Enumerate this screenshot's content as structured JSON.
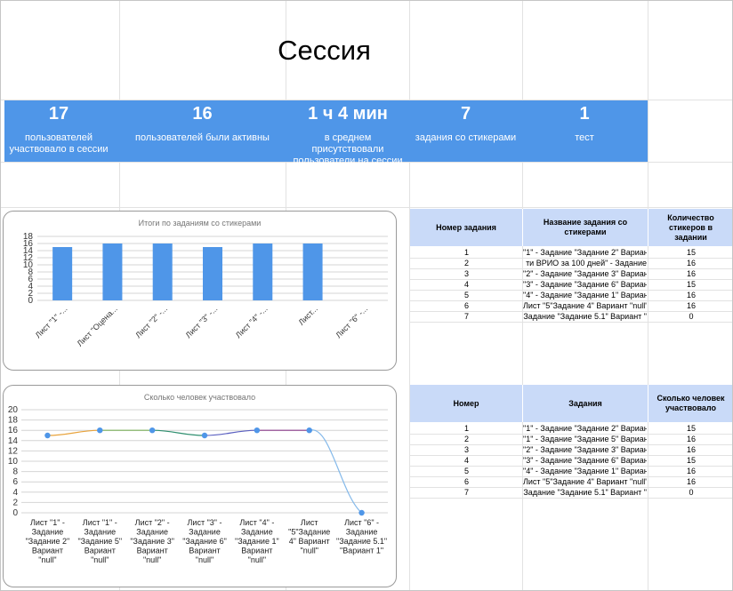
{
  "title": "Сессия",
  "stats": [
    {
      "value": "17",
      "label": "пользователей участвовало в сессии"
    },
    {
      "value": "16",
      "label": "пользователей были активны"
    },
    {
      "value": "1 ч 4 мин",
      "label": "в среднем присутствовали пользователи на сессии"
    },
    {
      "value": "7",
      "label": "задания со стикерами"
    },
    {
      "value": "1",
      "label": "тест"
    }
  ],
  "table1": {
    "headers": [
      "Номер задания",
      "Название задания со стикерами",
      "Количество стикеров в задании"
    ],
    "rows": [
      [
        "1",
        "\"1\" - Задание \"Задание 2\" Вариант",
        "15"
      ],
      [
        "2",
        "ти ВРИО за 100 дней\" - Задание",
        "16"
      ],
      [
        "3",
        "\"2\" - Задание \"Задание 3\" Вариант",
        "16"
      ],
      [
        "4",
        "\"3\" - Задание \"Задание 6\" Вариант",
        "15"
      ],
      [
        "5",
        "\"4\" - Задание \"Задание 1\" Вариант",
        "16"
      ],
      [
        "6",
        "Лист \"5\"Задание 4\" Вариант \"null\"",
        "16"
      ],
      [
        "7",
        "Задание \"Задание 5.1\" Вариант \"",
        "0"
      ]
    ]
  },
  "table2": {
    "headers": [
      "Номер",
      "Задания",
      "Сколько человек участвовало"
    ],
    "rows": [
      [
        "1",
        "\"1\" - Задание \"Задание 2\" Вариант",
        "15"
      ],
      [
        "2",
        "\"1\" - Задание \"Задание 5\" Вариант",
        "16"
      ],
      [
        "3",
        "\"2\" - Задание \"Задание 3\" Вариант",
        "16"
      ],
      [
        "4",
        "\"3\" - Задание \"Задание 6\" Вариант",
        "15"
      ],
      [
        "5",
        "\"4\" - Задание \"Задание 1\" Вариант",
        "16"
      ],
      [
        "6",
        "Лист \"5\"Задание 4\" Вариант \"null\"",
        "16"
      ],
      [
        "7",
        "Задание \"Задание 5.1\" Вариант \"",
        "0"
      ]
    ]
  },
  "chart_data": [
    {
      "type": "bar",
      "title": "Итоги по заданиям со стикерами",
      "categories": [
        "Лист \"1\" -...",
        "Лист \"Оцена...",
        "Лист \"2\" -...",
        "Лист \"3\" -...",
        "Лист \"4\" -...",
        "Лист...",
        "Лист \"6\" -..."
      ],
      "values": [
        15,
        16,
        16,
        15,
        16,
        16,
        0
      ],
      "ylim": [
        0,
        18
      ],
      "yticks": [
        0,
        2,
        4,
        6,
        8,
        10,
        12,
        14,
        16,
        18
      ],
      "color": "#4f96e8",
      "grid": true
    },
    {
      "type": "line",
      "title": "Сколько человек участвовало",
      "categories": [
        "Лист \"1\" - Задание \"Задание 2\" Вариант \"null\"",
        "Лист \"1\" - Задание \"Задание 5\" Вариант \"null\"",
        "Лист \"2\" - Задание \"Задание 3\" Вариант \"null\"",
        "Лист \"3\" - Задание \"Задание 6\" Вариант \"null\"",
        "Лист \"4\" - Задание \"Задание 1\" Вариант \"null\"",
        "Лист \"5\"Задание 4\" Вариант \"null\"",
        "Лист \"6\" - Задание \"Задание 5.1\" \"Вариант 1\""
      ],
      "category_lines": [
        [
          "Лист \"1\" -",
          "Задание",
          "\"Задание 2\"",
          "Вариант",
          "\"null\""
        ],
        [
          "Лист \"1\" -",
          "Задание",
          "\"Задание 5\"",
          "Вариант",
          "\"null\""
        ],
        [
          "Лист \"2\" -",
          "Задание",
          "\"Задание 3\"",
          "Вариант",
          "\"null\""
        ],
        [
          "Лист \"3\" -",
          "Задание",
          "\"Задание 6\"",
          "Вариант",
          "\"null\""
        ],
        [
          "Лист \"4\" -",
          "Задание",
          "\"Задание 1\"",
          "Вариант",
          "\"null\""
        ],
        [
          "Лист",
          "\"5\"Задание",
          "4\" Вариант",
          "\"null\""
        ],
        [
          "Лист \"6\" -",
          "Задание",
          "\"Задание 5.1\"",
          "\"Вариант 1\""
        ]
      ],
      "values": [
        15,
        16,
        16,
        15,
        16,
        16,
        0
      ],
      "ylim": [
        0,
        20
      ],
      "yticks": [
        0,
        2,
        4,
        6,
        8,
        10,
        12,
        14,
        16,
        18,
        20
      ],
      "segment_colors": [
        "#e8a33c",
        "#7bb05a",
        "#2f8f6f",
        "#5a5fc0",
        "#8a3a8a",
        "#84b9ea"
      ],
      "point_color": "#4f96e8",
      "grid": true
    }
  ]
}
